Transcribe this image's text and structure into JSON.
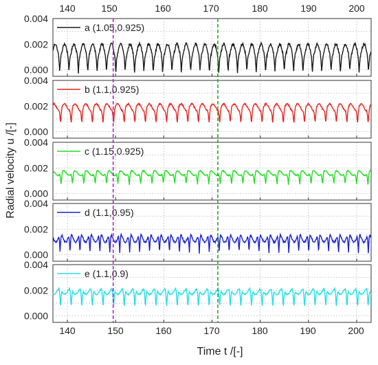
{
  "chart_data": {
    "type": "line",
    "xlabel": "Time t /[-]",
    "ylabel": "Radial velocity u /[-]",
    "xlim": [
      137,
      203
    ],
    "ylim": [
      -0.0005,
      0.004
    ],
    "x_ticks": [
      "140",
      "150",
      "160",
      "170",
      "180",
      "190",
      "200"
    ],
    "y_ticks": [
      "0.000",
      "0.002",
      "0.004"
    ],
    "grid": true,
    "vlines": [
      {
        "x": 149.5,
        "color": "#aa22cc",
        "style": "dashed"
      },
      {
        "x": 171.2,
        "color": "#22aa22",
        "style": "dashed"
      }
    ],
    "panels": [
      {
        "label": "a (1.05,0.925)",
        "color": "#1a1a1a",
        "baseline": 0.0015,
        "amplitude": 0.00115,
        "dip_min": -0.0002,
        "n_dips": 34
      },
      {
        "label": "b (1.1,0.925)",
        "color": "#e8241e",
        "baseline": 0.0019,
        "amplitude": 0.0006,
        "dip_min": 0.0006,
        "n_dips": 30
      },
      {
        "label": "c (1.15,0.925)",
        "color": "#22dd22",
        "baseline": 0.0016,
        "amplitude": 0.0004,
        "dip_min": 0.0007,
        "n_dips": 28
      },
      {
        "label": "d (1.1,0.95)",
        "color": "#1a22cc",
        "baseline": 0.0013,
        "amplitude": 0.0007,
        "dip_min": 0.0001,
        "n_dips": 32
      },
      {
        "label": "e (1.1,0.9)",
        "color": "#22e0e8",
        "baseline": 0.0019,
        "amplitude": 0.0005,
        "dip_min": 0.0006,
        "n_dips": 30
      }
    ]
  }
}
